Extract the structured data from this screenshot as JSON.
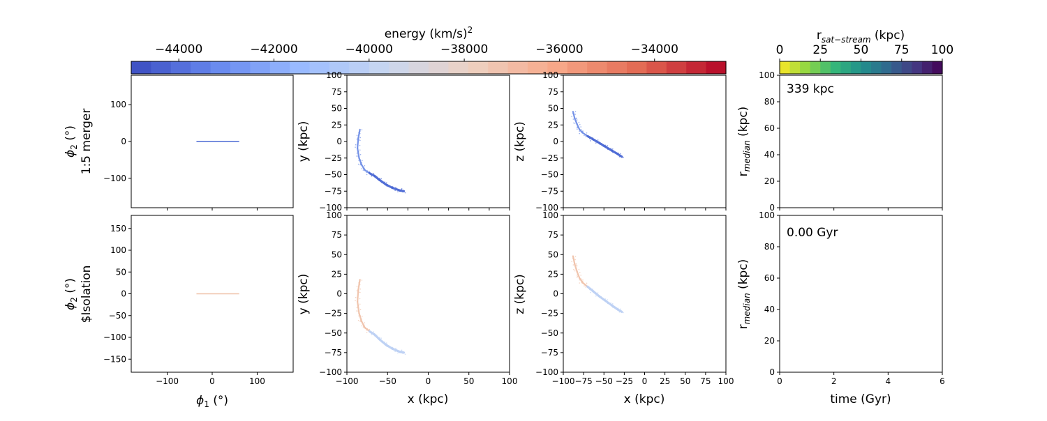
{
  "colorbar_energy": {
    "label_main": "energy (km/s)",
    "label_sup": "2",
    "range": [
      -45000,
      -32500
    ],
    "ticks": [
      -44000,
      -42000,
      -40000,
      -38000,
      -36000,
      -34000
    ],
    "tick_labels": [
      "−44000",
      "−42000",
      "−40000",
      "−38000",
      "−36000",
      "−34000"
    ],
    "colormap": "coolwarm"
  },
  "colorbar_distance": {
    "label_main": "r",
    "label_sub": "sat−stream",
    "label_unit": " (kpc)",
    "range": [
      0,
      100
    ],
    "ticks": [
      0,
      25,
      50,
      75,
      100
    ],
    "tick_labels": [
      "0",
      "25",
      "50",
      "75",
      "100"
    ],
    "colormap": "viridis_r"
  },
  "rows": [
    {
      "name": "1:5 merger",
      "phi2_label_main": "ϕ",
      "phi2_label_sub": "2",
      "phi2_label_unit": " (°)",
      "row_label": "1:5 merger",
      "annotation": "339 kpc",
      "stream_color": "#6f8ee6",
      "stream_color_dark": "#4a68d4"
    },
    {
      "name": "$Isolation",
      "phi2_label_main": "ϕ",
      "phi2_label_sub": "2",
      "phi2_label_unit": " (°)",
      "row_label": "$Isolation",
      "annotation": "0.00 Gyr",
      "stream_color": "#bcd0f4",
      "stream_color_dark": "#f0c2aa"
    }
  ],
  "axes": {
    "phi1_label": "ϕ",
    "phi1_sub": "1",
    "phi1_unit": " (°)",
    "x_label": "x (kpc)",
    "y_label": "y (kpc)",
    "z_label": "z (kpc)",
    "time_label": "time (Gyr)",
    "rmed_main": "r",
    "rmed_sub": "median",
    "rmed_unit": " (kpc)"
  },
  "chart_data": [
    {
      "type": "scatter",
      "panel": "phi1-phi2 top",
      "xlim": [
        -180,
        180
      ],
      "ylim": [
        -180,
        180
      ],
      "yticks": [
        -100,
        0,
        100
      ],
      "ytick_labels": [
        "−100",
        "0",
        "100"
      ],
      "stream_phi1_range": [
        -35,
        60
      ],
      "stream_phi2": 0
    },
    {
      "type": "scatter",
      "panel": "x-y top",
      "xlim": [
        -100,
        100
      ],
      "ylim": [
        -100,
        100
      ],
      "ticks": [
        -100,
        -75,
        -50,
        -25,
        0,
        25,
        50,
        75,
        100
      ],
      "tick_labels": [
        "−100",
        "−75",
        "−50",
        "−25",
        "0",
        "25",
        "50",
        "75",
        "100"
      ],
      "track_x": [
        -84,
        -86,
        -87,
        -85,
        -82,
        -78,
        -72,
        -66,
        -60,
        -52,
        -44,
        -35,
        -30
      ],
      "track_y": [
        18,
        5,
        -10,
        -25,
        -35,
        -43,
        -48,
        -52,
        -58,
        -65,
        -70,
        -74,
        -75
      ]
    },
    {
      "type": "scatter",
      "panel": "x-z top",
      "xlim": [
        -100,
        100
      ],
      "ylim": [
        -100,
        100
      ],
      "track_x": [
        -88,
        -86,
        -83,
        -80,
        -76,
        -70,
        -63,
        -56,
        -48,
        -40,
        -33,
        -28
      ],
      "track_z": [
        45,
        35,
        26,
        18,
        13,
        8,
        3,
        -2,
        -8,
        -14,
        -19,
        -23
      ]
    },
    {
      "type": "line",
      "panel": "time-rmedian top",
      "xlim": [
        0,
        6
      ],
      "ylim": [
        0,
        100
      ],
      "yticks": [
        0,
        20,
        40,
        60,
        80,
        100
      ],
      "x": [],
      "y": []
    },
    {
      "type": "scatter",
      "panel": "phi1-phi2 bottom",
      "xlim": [
        -180,
        180
      ],
      "ylim": [
        -180,
        180
      ],
      "xticks": [
        -100,
        0,
        100
      ],
      "xtick_labels": [
        "−100",
        "0",
        "100"
      ],
      "yticks": [
        -150,
        -100,
        -50,
        0,
        50,
        100,
        150
      ],
      "ytick_labels": [
        "−150",
        "−100",
        "−50",
        "0",
        "50",
        "100",
        "150"
      ],
      "stream_phi1_range": [
        -35,
        60
      ],
      "stream_phi2": 0
    },
    {
      "type": "scatter",
      "panel": "x-y bottom",
      "xlim": [
        -100,
        100
      ],
      "ylim": [
        -100,
        100
      ],
      "xticks": [
        -100,
        -50,
        0,
        50,
        100
      ],
      "xtick_labels": [
        "−100",
        "−50",
        "0",
        "50",
        "100"
      ],
      "track_x": [
        -84,
        -86,
        -87,
        -85,
        -82,
        -78,
        -72,
        -66,
        -60,
        -52,
        -44,
        -35,
        -30
      ],
      "track_y": [
        18,
        5,
        -10,
        -25,
        -35,
        -43,
        -48,
        -52,
        -58,
        -65,
        -70,
        -74,
        -75
      ]
    },
    {
      "type": "scatter",
      "panel": "x-z bottom",
      "xlim": [
        -100,
        100
      ],
      "ylim": [
        -100,
        100
      ],
      "track_x": [
        -88,
        -86,
        -83,
        -80,
        -76,
        -70,
        -63,
        -56,
        -48,
        -40,
        -33,
        -28
      ],
      "track_z": [
        48,
        38,
        28,
        20,
        14,
        9,
        3,
        -3,
        -9,
        -15,
        -20,
        -23
      ]
    },
    {
      "type": "line",
      "panel": "time-rmedian bottom",
      "xlim": [
        0,
        6
      ],
      "ylim": [
        0,
        100
      ],
      "xticks": [
        0,
        2,
        4,
        6
      ],
      "x": [],
      "y": []
    }
  ]
}
